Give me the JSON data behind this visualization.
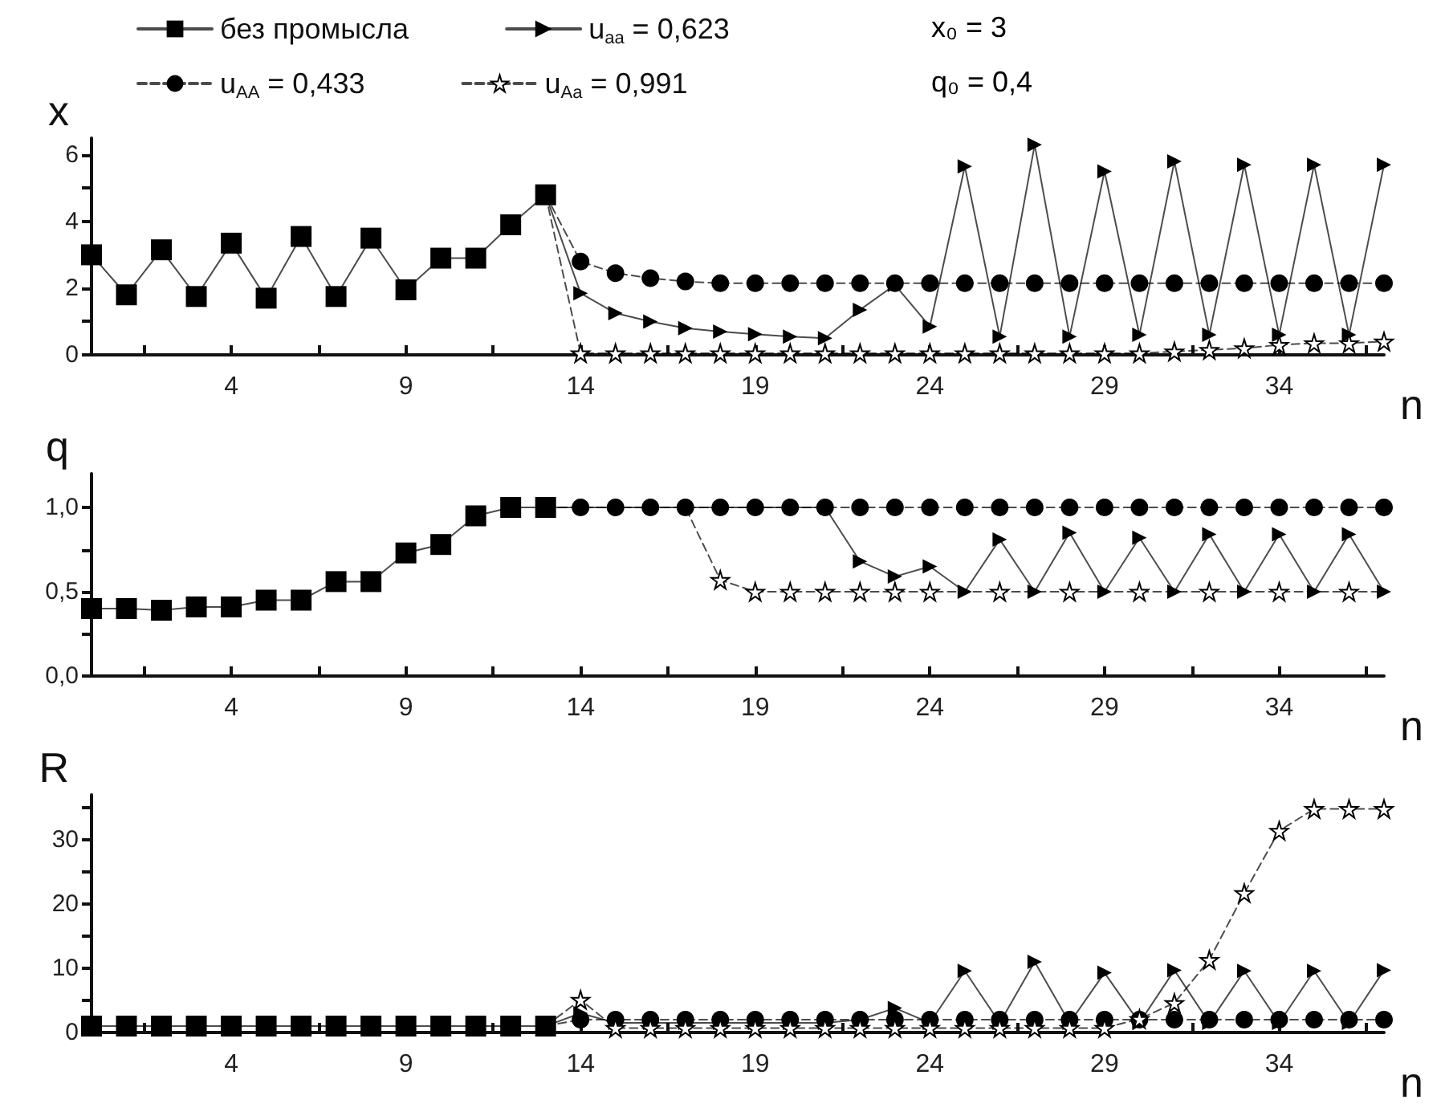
{
  "chart_data": [
    {
      "type": "line",
      "ylabel": "x",
      "xlabel": "n",
      "legend": "top",
      "annotations": [
        "x₀ = 3",
        "q₀ = 0,4"
      ],
      "x": [
        0,
        1,
        2,
        3,
        4,
        5,
        6,
        7,
        8,
        9,
        10,
        11,
        12,
        13,
        14,
        15,
        16,
        17,
        18,
        19,
        20,
        21,
        22,
        23,
        24,
        25,
        26,
        27,
        28,
        29,
        30,
        31,
        32,
        33,
        34,
        35,
        36,
        37
      ],
      "xlim": [
        0,
        37
      ],
      "xticks": [
        {
          "value": 1.5,
          "label": null
        },
        4,
        {
          "value": 6.5,
          "label": null
        },
        9,
        {
          "value": 11.5,
          "label": null
        },
        14,
        {
          "value": 16.5,
          "label": null
        },
        19,
        {
          "value": 21.5,
          "label": null
        },
        24,
        {
          "value": 26.5,
          "label": null
        },
        29,
        {
          "value": 31.5,
          "label": null
        },
        34,
        {
          "value": 36.5,
          "label": null
        }
      ],
      "ylim": [
        0,
        6.5
      ],
      "yticks": [
        0,
        {
          "value": 1,
          "label": null
        },
        2,
        {
          "value": 3,
          "label": null
        },
        4,
        {
          "value": 5,
          "label": null
        },
        6
      ],
      "series": [
        {
          "name": "без промысла",
          "color": "#000000",
          "marker": "square",
          "line_style": "solid",
          "values": [
            3,
            1.8,
            3.15,
            1.75,
            3.35,
            1.7,
            3.55,
            1.75,
            3.5,
            1.95,
            2.9,
            2.9,
            3.9,
            4.8,
            null,
            null,
            null,
            null,
            null,
            null,
            null,
            null,
            null,
            null,
            null,
            null,
            null,
            null,
            null,
            null,
            null,
            null,
            null,
            null,
            null,
            null,
            null,
            null
          ]
        },
        {
          "name": "u$_{AA}$ = 0,433",
          "color": "#000000",
          "marker": "circle",
          "line_style": "dashed",
          "values": [
            null,
            null,
            null,
            null,
            null,
            null,
            null,
            null,
            null,
            null,
            null,
            null,
            null,
            4.8,
            2.8,
            2.45,
            2.3,
            2.2,
            2.15,
            2.15,
            2.15,
            2.15,
            2.15,
            2.15,
            2.15,
            2.15,
            2.15,
            2.15,
            2.15,
            2.15,
            2.15,
            2.15,
            2.15,
            2.15,
            2.15,
            2.15,
            2.15,
            2.15
          ]
        },
        {
          "name": "u$_{aa}$ = 0,623",
          "color": "#000000",
          "marker": "triangle",
          "line_style": "solid",
          "values": [
            null,
            null,
            null,
            null,
            null,
            null,
            null,
            null,
            null,
            null,
            null,
            null,
            null,
            4.8,
            1.85,
            1.25,
            1.0,
            0.8,
            0.7,
            0.62,
            0.55,
            0.5,
            1.35,
            2.1,
            0.85,
            5.65,
            0.55,
            6.3,
            0.55,
            5.5,
            0.6,
            5.8,
            0.6,
            5.7,
            0.6,
            5.7,
            0.6,
            5.7
          ]
        },
        {
          "name": "u$_{Aa}$ = 0,991",
          "color": "#000000",
          "marker": "star",
          "line_style": "dashed",
          "values": [
            null,
            null,
            null,
            null,
            null,
            null,
            null,
            null,
            null,
            null,
            null,
            null,
            null,
            4.8,
            0.05,
            0.05,
            0.05,
            0.05,
            0.05,
            0.05,
            0.05,
            0.05,
            0.05,
            0.05,
            0.05,
            0.05,
            0.05,
            0.05,
            0.05,
            0.05,
            0.05,
            0.1,
            0.15,
            0.2,
            0.3,
            0.35,
            0.35,
            0.4
          ]
        }
      ]
    },
    {
      "type": "line",
      "ylabel": "q",
      "xlabel": "n",
      "legend": false,
      "x": [
        0,
        1,
        2,
        3,
        4,
        5,
        6,
        7,
        8,
        9,
        10,
        11,
        12,
        13,
        14,
        15,
        16,
        17,
        18,
        19,
        20,
        21,
        22,
        23,
        24,
        25,
        26,
        27,
        28,
        29,
        30,
        31,
        32,
        33,
        34,
        35,
        36,
        37
      ],
      "xlim": [
        0,
        37
      ],
      "xticks": [
        {
          "value": 1.5,
          "label": null
        },
        4,
        {
          "value": 6.5,
          "label": null
        },
        9,
        {
          "value": 11.5,
          "label": null
        },
        14,
        {
          "value": 16.5,
          "label": null
        },
        19,
        {
          "value": 21.5,
          "label": null
        },
        24,
        {
          "value": 26.5,
          "label": null
        },
        29,
        {
          "value": 31.5,
          "label": null
        },
        34,
        {
          "value": 36.5,
          "label": null
        }
      ],
      "ylim": [
        0,
        1.2
      ],
      "yticks": [
        {
          "value": 0,
          "label": "0,0"
        },
        {
          "value": 0.25,
          "label": null
        },
        {
          "value": 0.5,
          "label": "0,5"
        },
        {
          "value": 0.75,
          "label": null
        },
        {
          "value": 1,
          "label": "1,0"
        }
      ],
      "series": [
        {
          "color": "#000000",
          "marker": "square",
          "line_style": "solid",
          "values": [
            0.4,
            0.4,
            0.39,
            0.41,
            0.41,
            0.45,
            0.45,
            0.56,
            0.56,
            0.73,
            0.78,
            0.95,
            1.0,
            1.0,
            null,
            null,
            null,
            null,
            null,
            null,
            null,
            null,
            null,
            null,
            null,
            null,
            null,
            null,
            null,
            null,
            null,
            null,
            null,
            null,
            null,
            null,
            null,
            null
          ]
        },
        {
          "color": "#000000",
          "marker": "circle",
          "line_style": "dashed",
          "values": [
            null,
            null,
            null,
            null,
            null,
            null,
            null,
            null,
            null,
            null,
            null,
            null,
            null,
            1.0,
            1.0,
            1.0,
            1.0,
            1.0,
            1.0,
            1.0,
            1.0,
            1.0,
            1.0,
            1.0,
            1.0,
            1.0,
            1.0,
            1.0,
            1.0,
            1.0,
            1.0,
            1.0,
            1.0,
            1.0,
            1.0,
            1.0,
            1.0,
            1.0
          ]
        },
        {
          "color": "#000000",
          "marker": "triangle",
          "line_style": "solid",
          "values": [
            null,
            null,
            null,
            null,
            null,
            null,
            null,
            null,
            null,
            null,
            null,
            null,
            null,
            1.0,
            1.0,
            1.0,
            1.0,
            1.0,
            1.0,
            1.0,
            1.0,
            1.0,
            0.68,
            0.59,
            0.65,
            0.5,
            0.81,
            0.5,
            0.85,
            0.5,
            0.82,
            0.5,
            0.84,
            0.5,
            0.84,
            0.5,
            0.84,
            0.5
          ]
        },
        {
          "color": "#000000",
          "marker": "star",
          "line_style": "dashed",
          "values": [
            null,
            null,
            null,
            null,
            null,
            null,
            null,
            null,
            null,
            null,
            null,
            null,
            null,
            1.0,
            1.0,
            1.0,
            1.0,
            1.0,
            0.57,
            0.5,
            0.5,
            0.5,
            0.5,
            0.5,
            0.5,
            0.5,
            0.5,
            0.5,
            0.5,
            0.5,
            0.5,
            0.5,
            0.5,
            0.5,
            0.5,
            0.5,
            0.5,
            0.5
          ]
        }
      ]
    },
    {
      "type": "line",
      "ylabel": "R",
      "xlabel": "n",
      "legend": false,
      "x": [
        0,
        1,
        2,
        3,
        4,
        5,
        6,
        7,
        8,
        9,
        10,
        11,
        12,
        13,
        14,
        15,
        16,
        17,
        18,
        19,
        20,
        21,
        22,
        23,
        24,
        25,
        26,
        27,
        28,
        29,
        30,
        31,
        32,
        33,
        34,
        35,
        36,
        37
      ],
      "xlim": [
        0,
        37
      ],
      "xticks": [
        {
          "value": 1.5,
          "label": null
        },
        4,
        {
          "value": 6.5,
          "label": null
        },
        9,
        {
          "value": 11.5,
          "label": null
        },
        14,
        {
          "value": 16.5,
          "label": null
        },
        19,
        {
          "value": 21.5,
          "label": null
        },
        24,
        {
          "value": 26.5,
          "label": null
        },
        29,
        {
          "value": 31.5,
          "label": null
        },
        34,
        {
          "value": 36.5,
          "label": null
        }
      ],
      "ylim": [
        0,
        37
      ],
      "yticks": [
        0,
        {
          "value": 5,
          "label": null
        },
        10,
        {
          "value": 15,
          "label": null
        },
        20,
        {
          "value": 25,
          "label": null
        },
        30,
        {
          "value": 35,
          "label": null
        }
      ],
      "series": [
        {
          "color": "#000000",
          "marker": "square",
          "line_style": "solid",
          "values": [
            1,
            1,
            1,
            1,
            1,
            1,
            1,
            1,
            1,
            1,
            1,
            1,
            1,
            1,
            null,
            null,
            null,
            null,
            null,
            null,
            null,
            null,
            null,
            null,
            null,
            null,
            null,
            null,
            null,
            null,
            null,
            null,
            null,
            null,
            null,
            null,
            null,
            null
          ]
        },
        {
          "color": "#000000",
          "marker": "circle",
          "line_style": "dashed",
          "values": [
            null,
            null,
            null,
            null,
            null,
            null,
            null,
            null,
            null,
            null,
            null,
            null,
            null,
            1,
            2,
            2,
            2,
            2,
            2,
            2,
            2,
            2,
            2,
            2,
            2,
            2,
            2,
            2,
            2,
            2,
            2,
            2,
            2,
            2,
            2,
            2,
            2,
            2
          ]
        },
        {
          "color": "#000000",
          "marker": "triangle",
          "line_style": "solid",
          "values": [
            null,
            null,
            null,
            null,
            null,
            null,
            null,
            null,
            null,
            null,
            null,
            null,
            null,
            1,
            3,
            1.5,
            1.5,
            1.5,
            1.5,
            1.5,
            1.5,
            1.5,
            2,
            3.8,
            1.5,
            9.6,
            1.5,
            11,
            1.5,
            9.3,
            1.5,
            9.7,
            1.5,
            9.6,
            1.5,
            9.6,
            1.5,
            9.7
          ]
        },
        {
          "color": "#000000",
          "marker": "star",
          "line_style": "dashed",
          "values": [
            null,
            null,
            null,
            null,
            null,
            null,
            null,
            null,
            null,
            null,
            null,
            null,
            null,
            1,
            5.1,
            0.7,
            0.7,
            0.7,
            0.7,
            0.7,
            0.7,
            0.7,
            0.7,
            0.7,
            0.7,
            0.7,
            0.7,
            0.7,
            0.7,
            0.7,
            2.1,
            4.6,
            11.3,
            21.7,
            31.4,
            34.8,
            34.8,
            34.8
          ]
        }
      ]
    }
  ]
}
